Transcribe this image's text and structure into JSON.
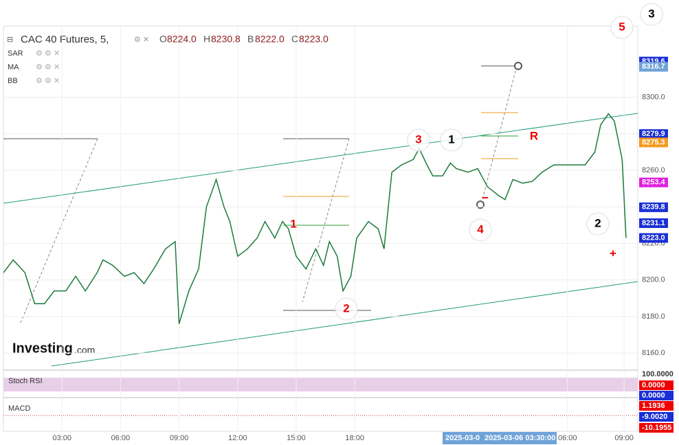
{
  "header": {
    "symbol": "CAC 40 Futures, 5,",
    "ohlc": [
      {
        "k": "O",
        "v": "8224.0"
      },
      {
        "k": "H",
        "v": "8230.8"
      },
      {
        "k": "B",
        "v": "8222.0"
      },
      {
        "k": "C",
        "v": "8223.0"
      }
    ]
  },
  "indicators": [
    "SAR",
    "MA",
    "BB"
  ],
  "logo": {
    "name": "Investing",
    "suffix": ".com"
  },
  "chart_data": {
    "type": "line",
    "color": "#1b7a3a",
    "x": [
      0,
      0.5,
      1.1,
      1.6,
      2.1,
      2.6,
      3.2,
      3.7,
      4.2,
      4.8,
      5.1,
      5.6,
      6.2,
      6.7,
      7.2,
      7.7,
      8.3,
      8.8,
      9.0,
      9.5,
      10.0,
      10.4,
      10.9,
      11.3,
      11.6,
      12.0,
      12.5,
      13.0,
      13.4,
      13.9,
      14.3,
      14.6,
      15.0,
      15.5,
      16.0,
      16.4,
      16.7,
      17.1,
      17.4,
      17.8,
      18.1,
      18.7,
      19.2,
      19.5,
      19.9,
      20.4,
      21.0,
      21.3,
      21.7,
      22.0,
      22.5,
      22.9,
      23.2,
      23.8,
      24.3,
      24.8,
      25.4,
      25.7,
      26.1,
      26.6,
      27.1,
      27.6,
      28.2,
      28.7,
      29.2,
      29.8,
      30.3,
      30.6,
      31.0,
      31.3,
      31.7,
      31.9
    ],
    "values": [
      8204,
      8211,
      8204,
      8187,
      8187,
      8194,
      8194,
      8202,
      8194,
      8204,
      8211,
      8208,
      8202,
      8204,
      8198,
      8206,
      8217,
      8221,
      8176,
      8194,
      8206,
      8240,
      8255,
      8240,
      8232,
      8213,
      8217,
      8223,
      8232,
      8223,
      8232,
      8228,
      8213,
      8206,
      8217,
      8208,
      8221,
      8213,
      8194,
      8202,
      8223,
      8232,
      8228,
      8217,
      8259,
      8263,
      8266,
      8272,
      8263,
      8257,
      8257,
      8264,
      8261,
      8259,
      8261,
      8251,
      8246,
      8244,
      8255,
      8253,
      8254,
      8259,
      8263,
      8263,
      8263,
      8263,
      8270,
      8285,
      8291,
      8287,
      8266,
      8223
    ],
    "xlim": [
      0,
      32.5
    ],
    "ylim": [
      8151,
      8339
    ],
    "yticks": [
      {
        "value": 8160,
        "label": "8160.0"
      },
      {
        "value": 8180,
        "label": "8180.0"
      },
      {
        "value": 8200,
        "label": "8200.0"
      },
      {
        "value": 8220,
        "label": "8220.0"
      },
      {
        "value": 8240,
        "label": "8240.0"
      },
      {
        "value": 8260,
        "label": "8260.0"
      },
      {
        "value": 8280,
        "label": "8280.0"
      },
      {
        "value": 8300,
        "label": "8300.0"
      }
    ],
    "xticks": [
      {
        "value": 3,
        "label": "03:00"
      },
      {
        "value": 6,
        "label": "06:00"
      },
      {
        "value": 9,
        "label": "09:00"
      },
      {
        "value": 12,
        "label": "12:00"
      },
      {
        "value": 15,
        "label": "15:00"
      },
      {
        "value": 18,
        "label": "18:00"
      },
      {
        "value": 28.9,
        "label": "06:00"
      },
      {
        "value": 31.8,
        "label": "09:00"
      }
    ],
    "grid": true,
    "price_tags": [
      {
        "value": 8319.6,
        "label": "8319.6",
        "color": "#1a2fd6"
      },
      {
        "value": 8316.7,
        "label": "8316.7",
        "color": "#6fa3d8"
      },
      {
        "value": 8279.9,
        "label": "8279.9",
        "color": "#1a2fd6"
      },
      {
        "value": 8275.3,
        "label": "8275.3",
        "color": "#f39a1e"
      },
      {
        "value": 8253.4,
        "label": "8253.4",
        "color": "#e020e0"
      },
      {
        "value": 8239.8,
        "label": "8239.8",
        "color": "#1a2fd6"
      },
      {
        "value": 8231.1,
        "label": "8231.1",
        "color": "#1a2fd6"
      },
      {
        "value": 8223,
        "label": "8223.0",
        "color": "#1a2fd6"
      }
    ]
  },
  "annotations": [
    "3",
    "5",
    "1",
    "3",
    "R",
    "4",
    "2",
    "2",
    "1",
    "+",
    "−"
  ],
  "panes": [
    {
      "label": "Stoch RSI",
      "tags": [
        "100.0000",
        "0.0000",
        "0.0000"
      ]
    },
    {
      "label": "MACD",
      "tags": [
        "1.1936",
        "-9.0020",
        "-10.1955"
      ]
    }
  ],
  "crosshair": {
    "date_left": "2025-03-0",
    "date": "2025-03-06 03:30:00"
  }
}
